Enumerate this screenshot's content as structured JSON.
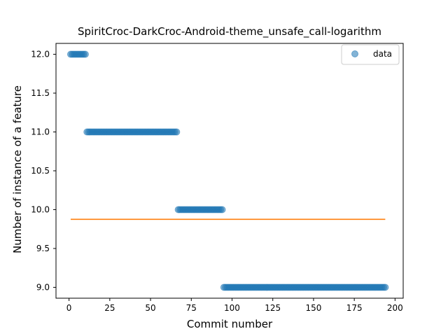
{
  "chart_data": {
    "type": "scatter",
    "title": "SpiritCroc-DarkCroc-Android-theme_unsafe_call-logarithm",
    "xlabel": "Commit number",
    "ylabel": "Number of instance of a feature",
    "xlim": [
      -8,
      205
    ],
    "ylim": [
      8.86,
      12.14
    ],
    "xticks": [
      0,
      25,
      50,
      75,
      100,
      125,
      150,
      175,
      200
    ],
    "yticks": [
      9.0,
      9.5,
      10.0,
      10.5,
      11.0,
      11.5,
      12.0
    ],
    "xtick_labels": [
      "0",
      "25",
      "50",
      "75",
      "100",
      "125",
      "150",
      "175",
      "200"
    ],
    "ytick_labels": [
      "9.0",
      "9.5",
      "10.0",
      "10.5",
      "11.0",
      "11.5",
      "12.0"
    ],
    "grid": false,
    "legend_position": "upper right",
    "series": [
      {
        "name": "data",
        "kind": "scatter",
        "color": "#1f77b4",
        "segments": [
          {
            "x_start": 1,
            "x_end": 10,
            "y": 12
          },
          {
            "x_start": 11,
            "x_end": 66,
            "y": 11
          },
          {
            "x_start": 67,
            "x_end": 94,
            "y": 10
          },
          {
            "x_start": 95,
            "x_end": 194,
            "y": 9
          }
        ]
      },
      {
        "kind": "line",
        "color": "#ff7f0e",
        "x": [
          1,
          194
        ],
        "y": [
          9.875,
          9.875
        ]
      }
    ]
  }
}
